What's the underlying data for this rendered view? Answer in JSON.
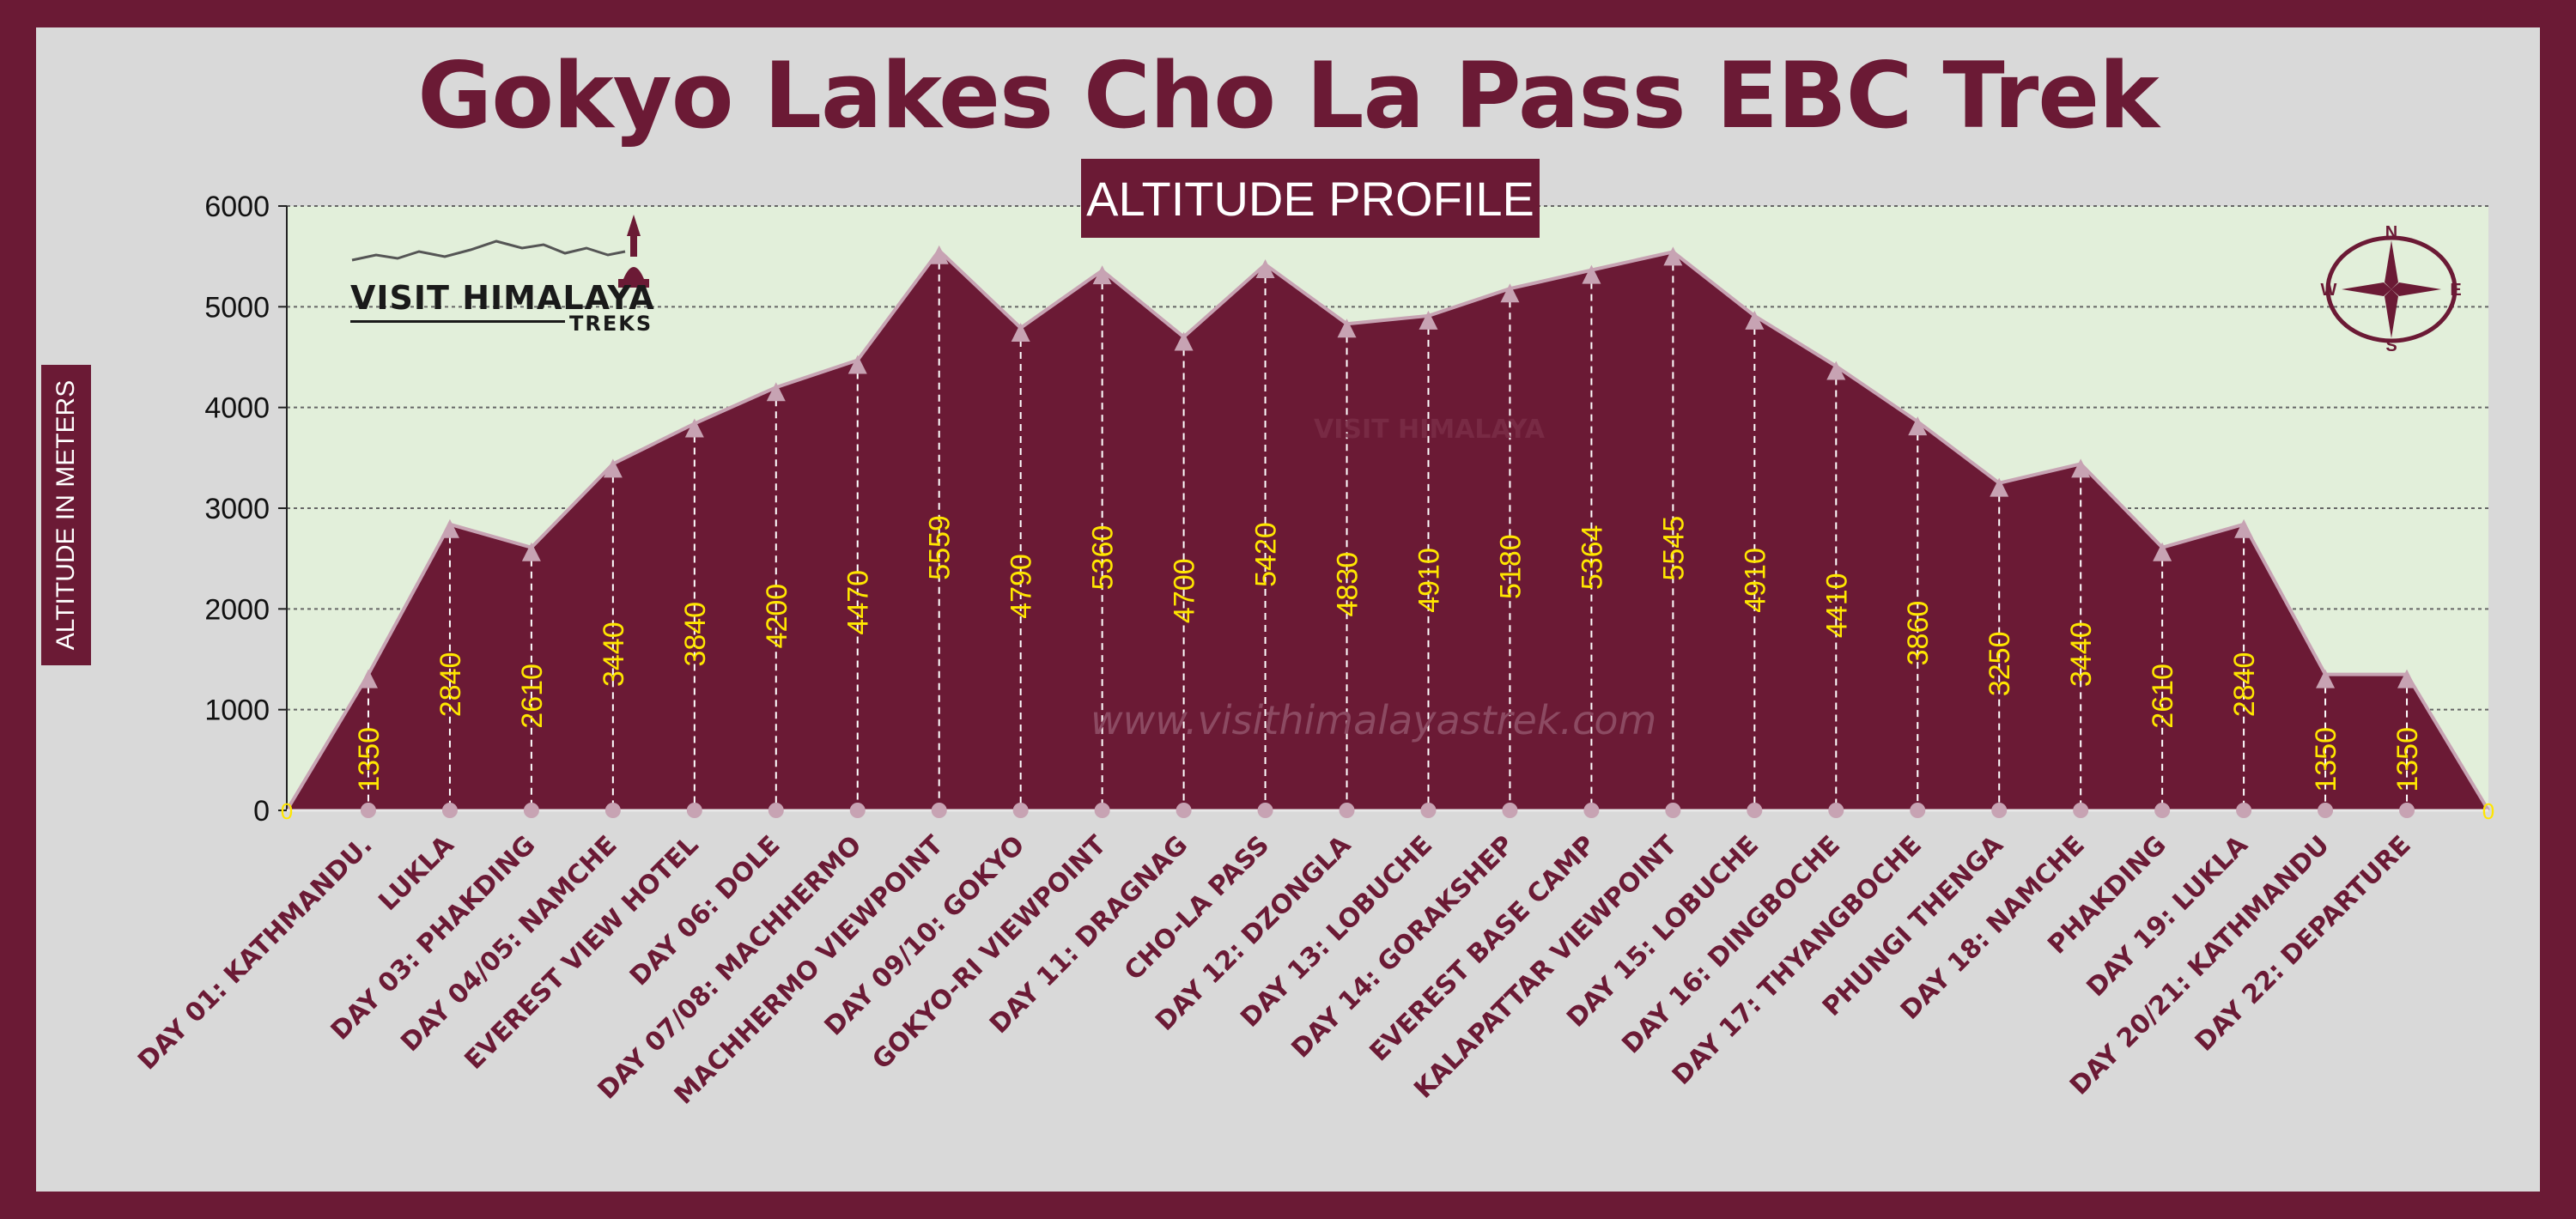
{
  "title": "Gokyo Lakes Cho La Pass EBC Trek",
  "subtitle": "ALTITUDE PROFILE",
  "logo": {
    "brand": "VISIT HIMALAYA",
    "sub": "TREKS"
  },
  "watermark": {
    "url": "www.visithimalayastrek.com",
    "logo_text": "VISIT HIMALAYA"
  },
  "compass": {
    "n": "N",
    "s": "S",
    "e": "E",
    "w": "W"
  },
  "colors": {
    "accent": "#6b1a35",
    "plot_bg": "#e2efda",
    "label": "#ffe600",
    "marker": "#c7a3b3"
  },
  "chart_data": {
    "type": "area",
    "ylabel": "ALTITUDE IN METERS",
    "ylim": [
      0,
      6000
    ],
    "yticks": [
      0,
      1000,
      2000,
      3000,
      4000,
      5000,
      6000
    ],
    "grid": true,
    "categories": [
      "DAY 01: KATHMANDU.",
      "LUKLA",
      "DAY 03: PHAKDING",
      "DAY 04/05: NAMCHE",
      "EVEREST VIEW HOTEL",
      "DAY 06: DOLE",
      "DAY 07/08: MACHHERMO",
      "MACHHERMO  VIEWPOINT",
      "DAY 09/10: GOKYO",
      "GOKYO-RI VIEWPOINT",
      "DAY 11: DRAGNAG",
      "CHO-LA PASS",
      "DAY 12: DZONGLA",
      "DAY 13: LOBUCHE",
      "DAY 14: GORAKSHEP",
      "EVEREST BASE CAMP",
      "KALAPATTAR VIEWPOINT",
      "DAY 15: LOBUCHE",
      "DAY 16: DINGBOCHE",
      "DAY 17: THYANGBOCHE",
      "PHUNGI THENGA",
      "DAY 18: NAMCHE",
      "PHAKDING",
      "DAY 19: LUKLA",
      "DAY 20/21: KATHMANDU",
      "DAY 22: DEPARTURE"
    ],
    "values": [
      1350,
      2840,
      2610,
      3440,
      3840,
      4200,
      4470,
      5559,
      4790,
      5360,
      4700,
      5420,
      4830,
      4910,
      5180,
      5364,
      5545,
      4910,
      4410,
      3860,
      3250,
      3440,
      2610,
      2840,
      1350,
      1350
    ],
    "endpoint_labels": [
      "0",
      "0"
    ]
  }
}
